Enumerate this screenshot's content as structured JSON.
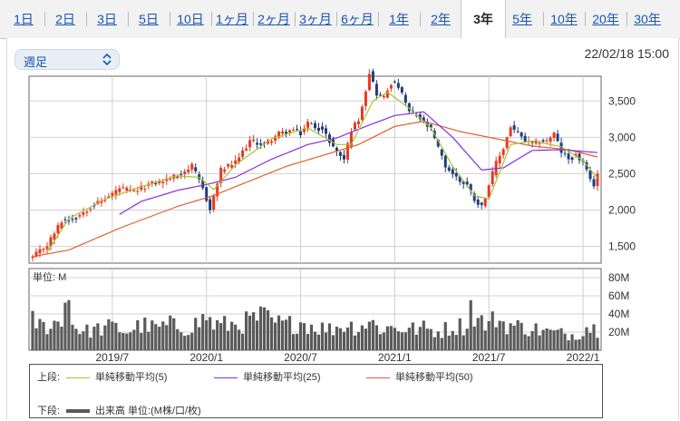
{
  "tabs": [
    {
      "label": "1日",
      "active": false
    },
    {
      "label": "2日",
      "active": false
    },
    {
      "label": "3日",
      "active": false
    },
    {
      "label": "5日",
      "active": false
    },
    {
      "label": "10日",
      "active": false
    },
    {
      "label": "1ヶ月",
      "active": false
    },
    {
      "label": "2ヶ月",
      "active": false
    },
    {
      "label": "3ヶ月",
      "active": false
    },
    {
      "label": "6ヶ月",
      "active": false
    },
    {
      "label": "1年",
      "active": false
    },
    {
      "label": "2年",
      "active": false
    },
    {
      "label": "3年",
      "active": true
    },
    {
      "label": "5年",
      "active": false
    },
    {
      "label": "10年",
      "active": false
    },
    {
      "label": "20年",
      "active": false
    },
    {
      "label": "30年",
      "active": false
    }
  ],
  "period_select": {
    "value": "週足"
  },
  "timestamp": "22/02/18 15:00",
  "colors": {
    "up": "#e83820",
    "down": "#1f3d7a",
    "ma5": "#a8c236",
    "ma25": "#8a2be2",
    "ma50": "#e06030",
    "volume": "#5a5a5a",
    "grid": "#d0d0d0"
  },
  "legend": {
    "upper_label": "上段:",
    "lower_label": "下段:",
    "ma5": "単純移動平均(5)",
    "ma25": "単純移動平均(25)",
    "ma50": "単純移動平均(50)",
    "volume": "出来高 単位:(M株/口/枚)"
  },
  "chart_data": [
    {
      "type": "candlestick",
      "y_ticks": [
        "3,500",
        "3,000",
        "2,500",
        "2,000",
        "1,500"
      ],
      "y_tick_values": [
        3500,
        3000,
        2500,
        2000,
        1500
      ],
      "ylim": [
        1270,
        3840
      ],
      "x_tick_labels": [
        "2019/7",
        "2020/1",
        "2020/7",
        "2021/1",
        "2021/7",
        "2022/1"
      ],
      "x_tick_weeks": [
        22,
        48,
        74,
        100,
        126,
        152
      ],
      "week_count": 157,
      "close_anchors": [
        [
          0,
          1350
        ],
        [
          4,
          1520
        ],
        [
          8,
          1850
        ],
        [
          12,
          1900
        ],
        [
          16,
          2050
        ],
        [
          20,
          2150
        ],
        [
          24,
          2300
        ],
        [
          28,
          2250
        ],
        [
          32,
          2350
        ],
        [
          36,
          2400
        ],
        [
          40,
          2480
        ],
        [
          44,
          2600
        ],
        [
          47,
          2300
        ],
        [
          49,
          2000
        ],
        [
          52,
          2550
        ],
        [
          56,
          2650
        ],
        [
          60,
          2950
        ],
        [
          64,
          2900
        ],
        [
          68,
          3050
        ],
        [
          72,
          3100
        ],
        [
          74,
          3050
        ],
        [
          76,
          3200
        ],
        [
          80,
          3100
        ],
        [
          84,
          2800
        ],
        [
          86,
          2700
        ],
        [
          88,
          3100
        ],
        [
          90,
          3250
        ],
        [
          92,
          3650
        ],
        [
          93,
          3900
        ],
        [
          95,
          3600
        ],
        [
          97,
          3550
        ],
        [
          99,
          3750
        ],
        [
          101,
          3700
        ],
        [
          104,
          3350
        ],
        [
          106,
          3300
        ],
        [
          108,
          3200
        ],
        [
          110,
          3100
        ],
        [
          112,
          2850
        ],
        [
          114,
          2600
        ],
        [
          116,
          2500
        ],
        [
          118,
          2400
        ],
        [
          120,
          2350
        ],
        [
          122,
          2150
        ],
        [
          124,
          2050
        ],
        [
          126,
          2350
        ],
        [
          128,
          2650
        ],
        [
          130,
          2850
        ],
        [
          132,
          3150
        ],
        [
          134,
          3050
        ],
        [
          136,
          2950
        ],
        [
          138,
          2900
        ],
        [
          140,
          2950
        ],
        [
          142,
          2950
        ],
        [
          144,
          3050
        ],
        [
          146,
          2800
        ],
        [
          148,
          2700
        ],
        [
          150,
          2750
        ],
        [
          152,
          2650
        ],
        [
          154,
          2400
        ],
        [
          155,
          2350
        ],
        [
          156,
          2500
        ]
      ],
      "ma5_anchors": [
        [
          4,
          1420
        ],
        [
          10,
          1880
        ],
        [
          20,
          2150
        ],
        [
          30,
          2320
        ],
        [
          40,
          2470
        ],
        [
          46,
          2450
        ],
        [
          50,
          2280
        ],
        [
          56,
          2620
        ],
        [
          66,
          2980
        ],
        [
          76,
          3130
        ],
        [
          84,
          2900
        ],
        [
          88,
          2900
        ],
        [
          94,
          3500
        ],
        [
          98,
          3620
        ],
        [
          104,
          3400
        ],
        [
          110,
          3130
        ],
        [
          116,
          2600
        ],
        [
          122,
          2200
        ],
        [
          126,
          2150
        ],
        [
          132,
          2900
        ],
        [
          138,
          2950
        ],
        [
          146,
          2870
        ],
        [
          152,
          2680
        ],
        [
          156,
          2440
        ]
      ],
      "ma25_anchors": [
        [
          24,
          1940
        ],
        [
          30,
          2120
        ],
        [
          40,
          2270
        ],
        [
          48,
          2350
        ],
        [
          56,
          2450
        ],
        [
          66,
          2700
        ],
        [
          76,
          2900
        ],
        [
          84,
          2990
        ],
        [
          92,
          3150
        ],
        [
          100,
          3300
        ],
        [
          108,
          3350
        ],
        [
          116,
          3000
        ],
        [
          124,
          2550
        ],
        [
          130,
          2580
        ],
        [
          138,
          2820
        ],
        [
          146,
          2830
        ],
        [
          156,
          2790
        ]
      ],
      "ma50_anchors": [
        [
          0,
          1360
        ],
        [
          10,
          1450
        ],
        [
          24,
          1750
        ],
        [
          40,
          2050
        ],
        [
          50,
          2200
        ],
        [
          60,
          2400
        ],
        [
          70,
          2600
        ],
        [
          80,
          2750
        ],
        [
          90,
          2900
        ],
        [
          100,
          3150
        ],
        [
          108,
          3220
        ],
        [
          118,
          3080
        ],
        [
          128,
          2980
        ],
        [
          138,
          2880
        ],
        [
          148,
          2830
        ],
        [
          156,
          2730
        ]
      ]
    },
    {
      "type": "bar",
      "unit_label": "単位: M",
      "y_ticks": [
        "80M",
        "60M",
        "40M",
        "20M"
      ],
      "y_tick_values": [
        80,
        60,
        40,
        20
      ],
      "ylim": [
        0,
        90
      ],
      "volume_anchors": [
        [
          0,
          35
        ],
        [
          3,
          28
        ],
        [
          6,
          33
        ],
        [
          8,
          30
        ],
        [
          9,
          85
        ],
        [
          11,
          32
        ],
        [
          14,
          22
        ],
        [
          18,
          25
        ],
        [
          22,
          28
        ],
        [
          26,
          22
        ],
        [
          30,
          30
        ],
        [
          34,
          26
        ],
        [
          38,
          30
        ],
        [
          42,
          26
        ],
        [
          46,
          33
        ],
        [
          48,
          40
        ],
        [
          50,
          30
        ],
        [
          54,
          30
        ],
        [
          58,
          32
        ],
        [
          62,
          38
        ],
        [
          64,
          40
        ],
        [
          66,
          33
        ],
        [
          70,
          30
        ],
        [
          74,
          34
        ],
        [
          78,
          28
        ],
        [
          82,
          25
        ],
        [
          86,
          30
        ],
        [
          90,
          28
        ],
        [
          93,
          34
        ],
        [
          96,
          26
        ],
        [
          100,
          27
        ],
        [
          104,
          25
        ],
        [
          108,
          26
        ],
        [
          112,
          22
        ],
        [
          116,
          28
        ],
        [
          120,
          30
        ],
        [
          121,
          52
        ],
        [
          123,
          36
        ],
        [
          126,
          30
        ],
        [
          128,
          40
        ],
        [
          130,
          32
        ],
        [
          134,
          28
        ],
        [
          138,
          26
        ],
        [
          142,
          22
        ],
        [
          146,
          20
        ],
        [
          150,
          18
        ],
        [
          153,
          28
        ],
        [
          156,
          25
        ]
      ]
    }
  ]
}
